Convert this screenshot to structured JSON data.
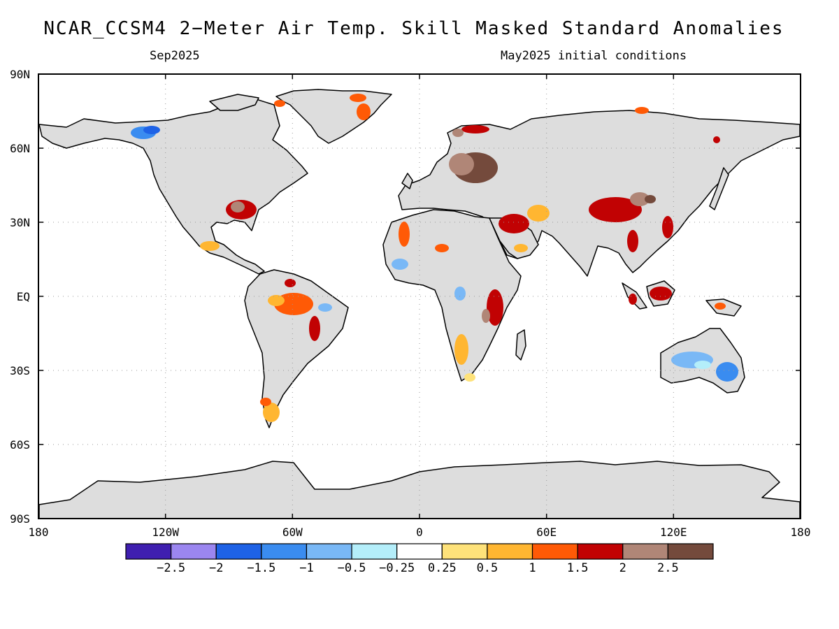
{
  "title": "NCAR_CCSM4 2−Meter Air Temp. Skill Masked Standard Anomalies",
  "subtitle_left": "Sep2025",
  "subtitle_right": "May2025 initial conditions",
  "map": {
    "projection": "equirectangular",
    "land_fill_color": "#dddddd",
    "ocean_color": "#ffffff",
    "grid": "dotted",
    "lat_labels": [
      "90N",
      "60N",
      "30N",
      "EQ",
      "30S",
      "60S",
      "90S"
    ],
    "lon_labels": [
      "180",
      "120W",
      "60W",
      "0",
      "60E",
      "120E",
      "180"
    ]
  },
  "colorbar": {
    "colors": [
      "#3f1fb0",
      "#9b86f0",
      "#1e62e6",
      "#3a8cf0",
      "#79b8f6",
      "#b4eefa",
      "#ffffff",
      "#fee27a",
      "#ffb631",
      "#ff5a06",
      "#c10203",
      "#b08677",
      "#744a3c"
    ],
    "labels": [
      "−2.5",
      "−2",
      "−1.5",
      "−1",
      "−0.5",
      "−0.25",
      "0.25",
      "0.5",
      "1",
      "1.5",
      "2",
      "2.5"
    ]
  }
}
